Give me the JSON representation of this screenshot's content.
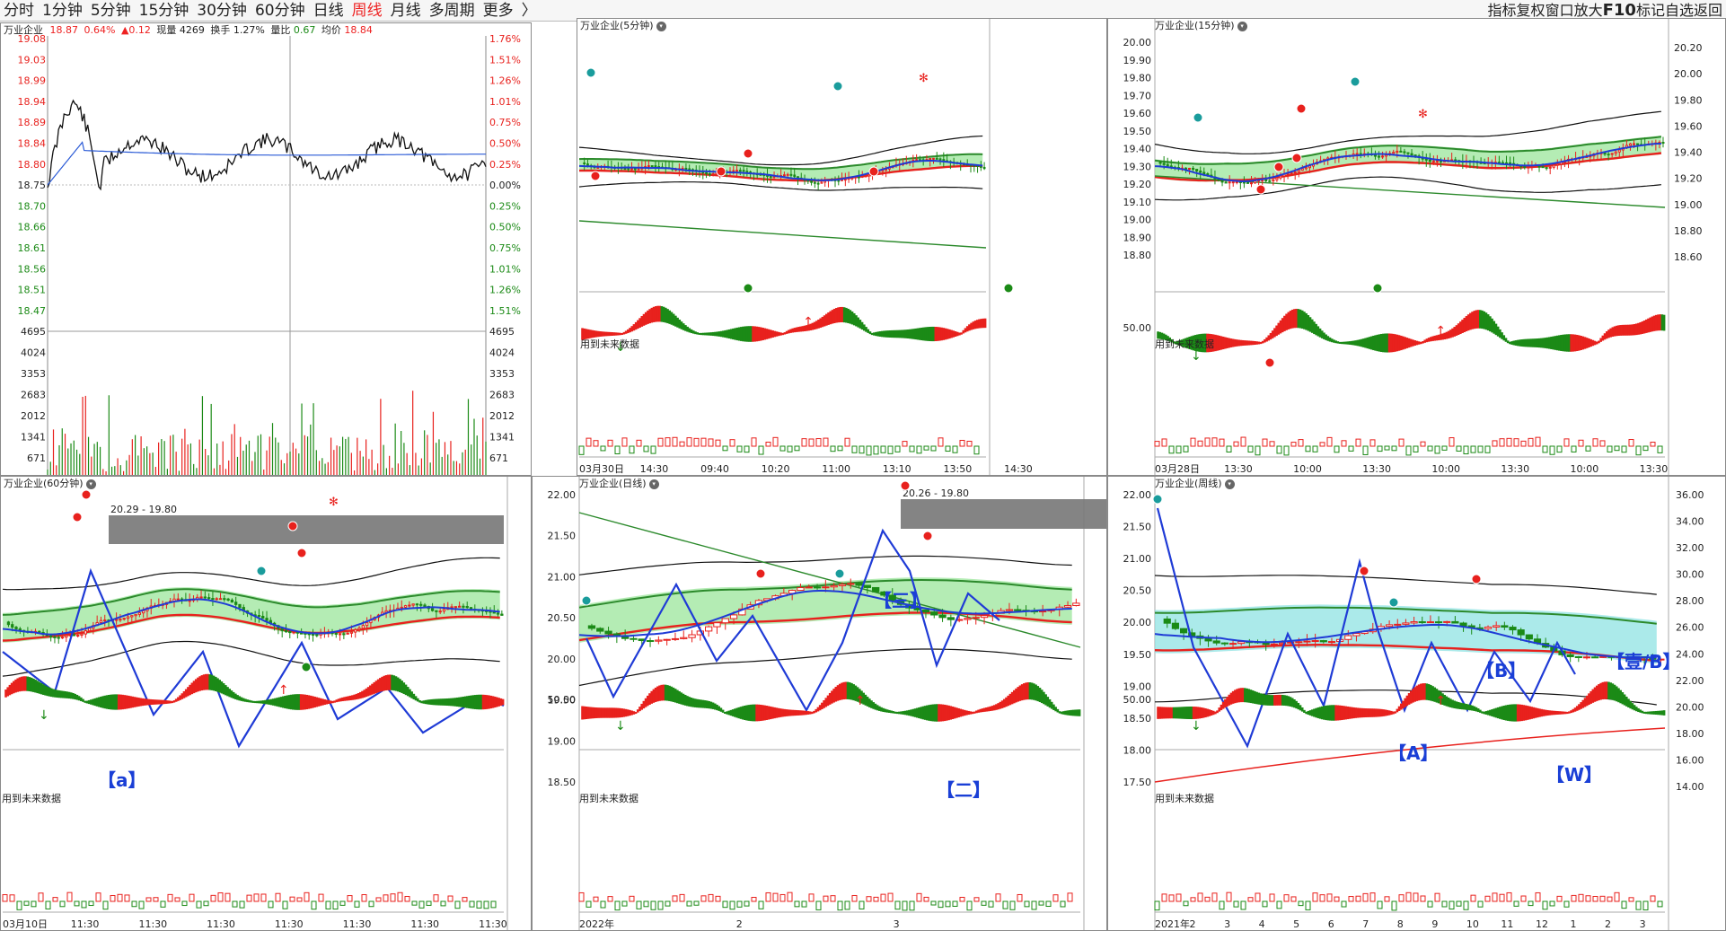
{
  "toolbar": {
    "tabs": [
      "分时",
      "1分钟",
      "5分钟",
      "15分钟",
      "30分钟",
      "60分钟",
      "日线",
      "周线",
      "月线",
      "多周期",
      "更多"
    ],
    "active_tab": "周线",
    "more_arrow": "〉",
    "right_items": [
      "指标",
      "复权",
      "窗口",
      "放大",
      "F10",
      "标记",
      "自选",
      "返回"
    ]
  },
  "colors": {
    "up": "#e8211d",
    "down": "#1b8a16",
    "wave": "#1f3bd6",
    "band": "#8fe08f",
    "cyan": "#8fe3e3"
  },
  "tick": {
    "name": "万业企业",
    "price": "18.87",
    "pct": "0.64%",
    "change": "▲0.12",
    "volume_label": "现量",
    "volume": "4269",
    "turnover_label": "换手",
    "turnover": "1.27%",
    "ratio_label": "量比",
    "ratio": "0.67",
    "avg_label": "均价",
    "avg": "18.84",
    "price_axis": [
      "19.08",
      "19.03",
      "18.99",
      "18.94",
      "18.89",
      "18.84",
      "18.80",
      "18.75",
      "18.70",
      "18.66",
      "18.61",
      "18.56",
      "18.51",
      "18.47"
    ],
    "pct_axis": [
      "1.76%",
      "1.51%",
      "1.26%",
      "1.01%",
      "0.75%",
      "0.50%",
      "0.25%",
      "0.00%",
      "0.25%",
      "0.50%",
      "0.75%",
      "1.01%",
      "1.26%",
      "1.51%"
    ],
    "vol_axis": [
      "4695",
      "4024",
      "3353",
      "2683",
      "2012",
      "1341",
      "671"
    ]
  },
  "panels": {
    "p5": {
      "title": "万业企业(5分钟)",
      "future": "用到未来数据",
      "x_labels": [
        "03月30日",
        "14:30",
        "09:40",
        "10:20",
        "11:00",
        "13:10",
        "13:50",
        "14:30"
      ]
    },
    "p15": {
      "title": "万业企业(15分钟)",
      "future": "用到未来数据",
      "left_axis": [
        "20.00",
        "19.90",
        "19.80",
        "19.70",
        "19.60",
        "19.50",
        "19.40",
        "19.30",
        "19.20",
        "19.10",
        "19.00",
        "18.90",
        "18.80"
      ],
      "right_axis": [
        "20.20",
        "20.00",
        "19.80",
        "19.60",
        "19.40",
        "19.20",
        "19.00",
        "18.80",
        "18.60"
      ],
      "macd_label": "50.00",
      "x_labels": [
        "03月28日",
        "13:30",
        "10:00",
        "13:30",
        "10:00",
        "13:30",
        "10:00",
        "13:30"
      ]
    },
    "p60": {
      "title": "万业企业(60分钟)",
      "future": "用到未来数据",
      "zone_label": "20.29 - 19.80",
      "wave_a": "【a】",
      "x_labels": [
        "03月10日",
        "11:30",
        "11:30",
        "11:30",
        "11:30",
        "11:30",
        "11:30",
        "11:30"
      ]
    },
    "pday": {
      "title": "万业企业(日线)",
      "future": "用到未来数据",
      "zone_label": "20.26 - 19.80",
      "wave_3": "【三】",
      "wave_2": "【二】",
      "left_axis": [
        "22.00",
        "21.50",
        "21.00",
        "20.50",
        "20.00",
        "19.50",
        "19.00",
        "18.50"
      ],
      "macd_label": "50.00",
      "x_labels": [
        "2022年",
        "2",
        "3"
      ]
    },
    "pweek": {
      "title": "万业企业(周线)",
      "future": "用到未来数据",
      "wave_1b": "【壹/B】",
      "wave_B": "【B】",
      "wave_A": "【A】",
      "wave_W": "【W】",
      "left_axis": [
        "22.00",
        "21.50",
        "21.00",
        "20.50",
        "20.00",
        "19.50",
        "19.00",
        "18.50",
        "18.00",
        "17.50"
      ],
      "right_axis": [
        "36.00",
        "34.00",
        "32.00",
        "30.00",
        "28.00",
        "26.00",
        "24.00",
        "22.00",
        "20.00",
        "18.00",
        "16.00",
        "14.00"
      ],
      "macd_label": "50.00",
      "x_labels": [
        "2021年",
        "2",
        "3",
        "4",
        "5",
        "6",
        "7",
        "8",
        "9",
        "10",
        "11",
        "12",
        "1",
        "2",
        "3"
      ]
    }
  }
}
